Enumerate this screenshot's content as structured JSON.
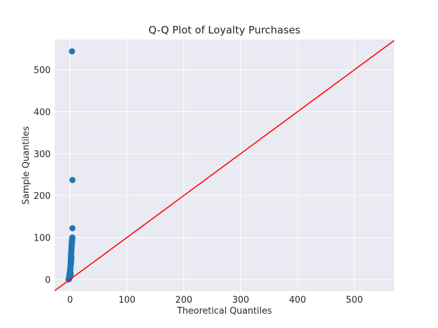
{
  "chart_data": {
    "type": "scatter",
    "title": "Q-Q Plot of Loyalty Purchases",
    "xlabel": "Theoretical Quantiles",
    "ylabel": "Sample Quantiles",
    "xlim": [
      -27,
      570
    ],
    "ylim": [
      -28,
      572
    ],
    "xticks": [
      0,
      100,
      200,
      300,
      400,
      500
    ],
    "yticks": [
      0,
      100,
      200,
      300,
      400,
      500
    ],
    "grid": true,
    "background_color": "#eaeaf2",
    "point_color": "#1f77b4",
    "reference_line_color": "#ff0000",
    "reference_line": {
      "x": [
        -27,
        570
      ],
      "y": [
        -27,
        570
      ]
    },
    "series": [
      {
        "x": [
          -2.8,
          -2.6,
          -2.4,
          -2.2,
          -2.0,
          -1.8,
          -1.6,
          -1.4,
          -1.2,
          -1.0,
          -0.8,
          -0.6,
          -0.4,
          -0.2,
          0.0,
          0.2,
          0.4,
          0.6,
          0.8,
          1.0,
          -1.5,
          -1.2,
          -1.0,
          -0.8,
          -0.6,
          -0.4,
          -0.2,
          0.0,
          0.2,
          0.4,
          0.6,
          0.8,
          1.0,
          1.2,
          1.4,
          1.6,
          1.8,
          2.0,
          2.2,
          2.3,
          0.2,
          0.4,
          0.6,
          0.8,
          1.0,
          1.2,
          1.4,
          1.6,
          1.8,
          2.0,
          2.2,
          2.4,
          2.5,
          2.6,
          2.7,
          2.8,
          2.9,
          3.0,
          3.1,
          3.2,
          3.3,
          3.4,
          3.5,
          3.6,
          3.7,
          3.8,
          3.9,
          4.0,
          4.1,
          4.2
        ],
        "y": [
          0,
          0,
          0,
          1,
          1,
          2,
          2,
          3,
          3,
          4,
          4,
          5,
          6,
          7,
          8,
          9,
          10,
          11,
          12,
          14,
          6,
          9,
          11,
          13,
          15,
          17,
          19,
          21,
          23,
          25,
          28,
          30,
          33,
          36,
          38,
          41,
          44,
          47,
          50,
          53,
          20,
          25,
          30,
          35,
          40,
          45,
          50,
          55,
          60,
          64,
          68,
          72,
          76,
          78,
          80,
          82,
          84,
          86,
          88,
          90,
          92,
          94,
          95,
          96,
          97,
          98,
          99,
          100,
          122,
          237
        ]
      },
      {
        "x": [
          3.3
        ],
        "y": [
          544
        ]
      }
    ]
  }
}
